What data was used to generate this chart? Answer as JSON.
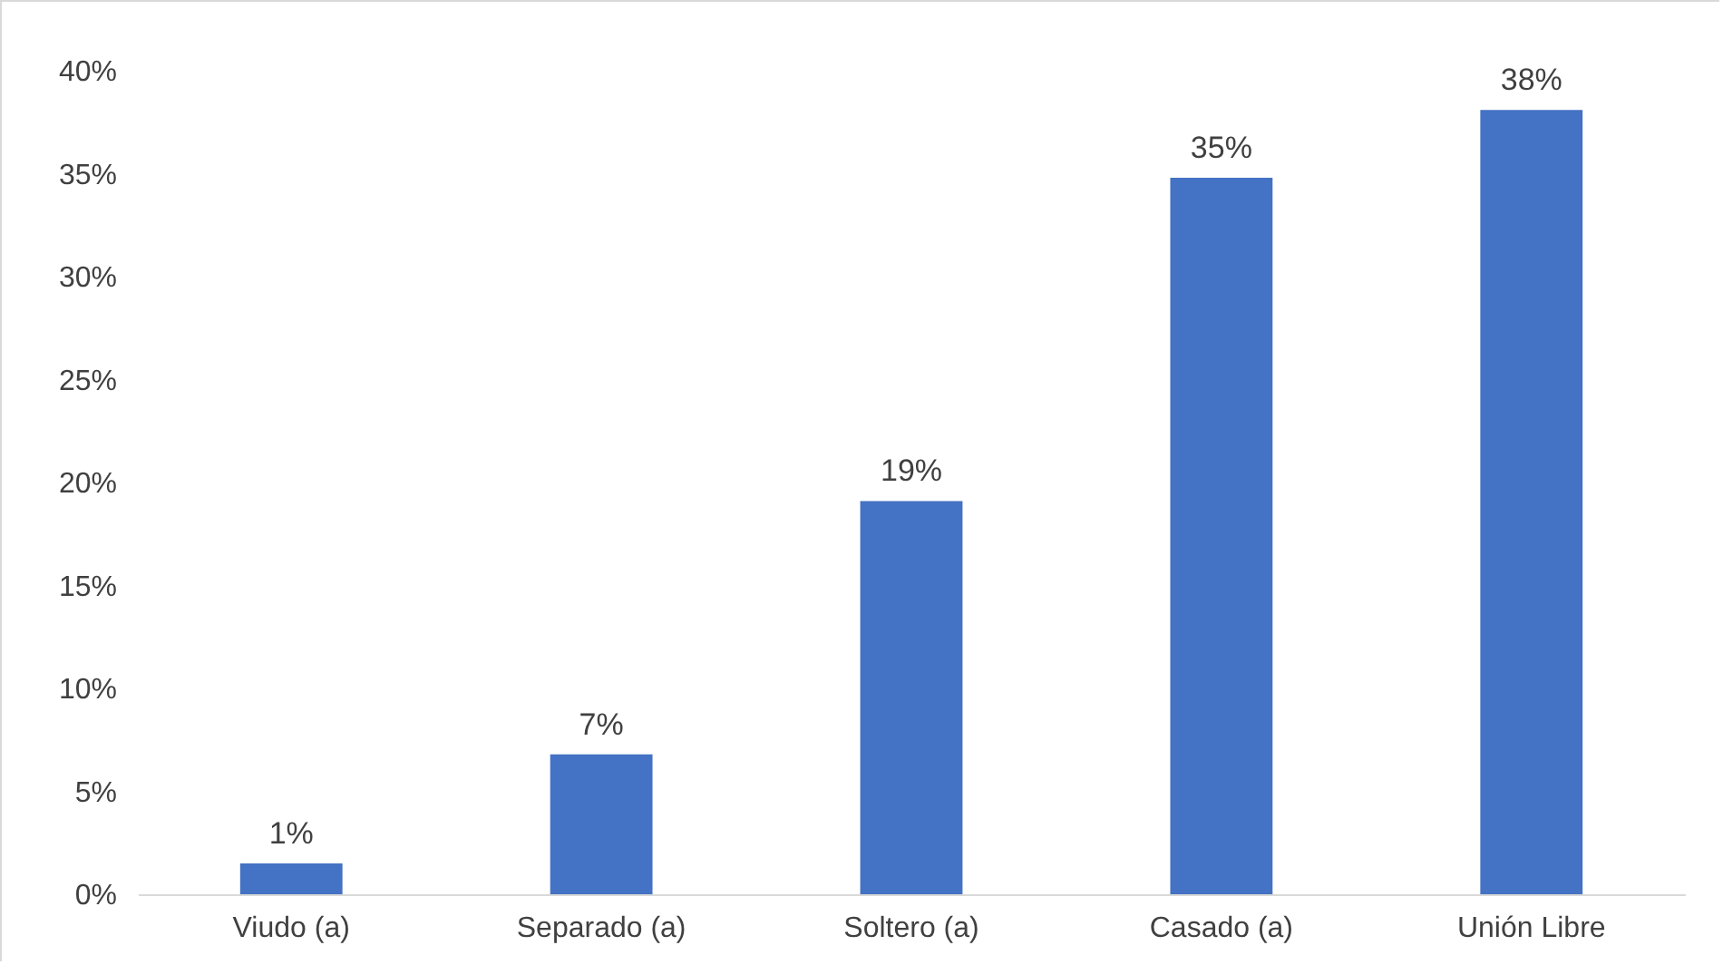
{
  "chart_data": {
    "type": "bar",
    "categories": [
      "Viudo (a)",
      "Separado (a)",
      "Soltero (a)",
      "Casado (a)",
      "Unión Libre"
    ],
    "values": [
      1.5,
      6.8,
      19.1,
      34.8,
      38.1
    ],
    "value_labels": [
      "1%",
      "7%",
      "19%",
      "35%",
      "38%"
    ],
    "color": "#4472c4",
    "ylim": [
      0,
      40
    ],
    "yticks": [
      {
        "value": 0,
        "label": "0%"
      },
      {
        "value": 5,
        "label": "5%"
      },
      {
        "value": 10,
        "label": "10%"
      },
      {
        "value": 15,
        "label": "15%"
      },
      {
        "value": 20,
        "label": "20%"
      },
      {
        "value": 25,
        "label": "25%"
      },
      {
        "value": 30,
        "label": "30%"
      },
      {
        "value": 35,
        "label": "35%"
      },
      {
        "value": 40,
        "label": "40%"
      }
    ],
    "grid": false
  }
}
